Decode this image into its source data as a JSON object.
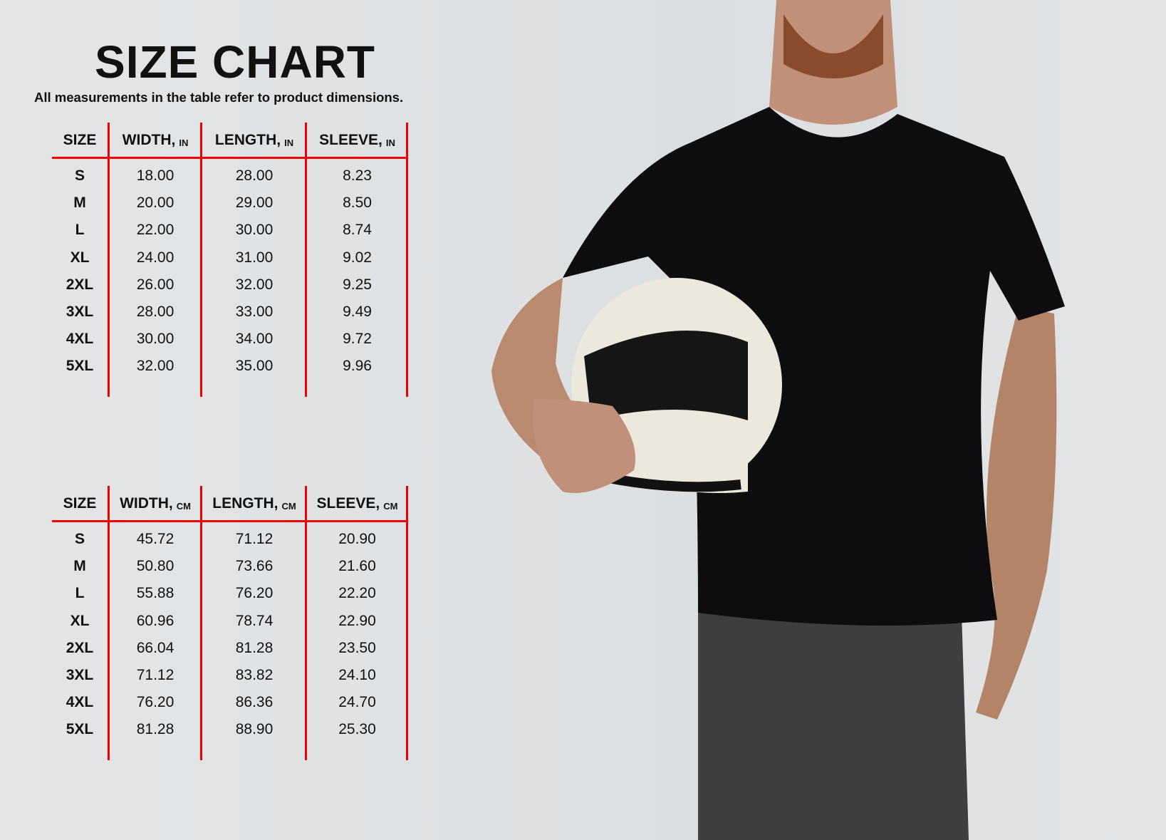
{
  "title": "SIZE CHART",
  "subtitle": "All measurements in the table refer to product dimensions.",
  "accent_color": "#f00000",
  "tables": [
    {
      "unit": "IN",
      "headers": [
        "SIZE",
        "WIDTH,",
        "LENGTH,",
        "SLEEVE,"
      ],
      "rows": [
        [
          "S",
          "18.00",
          "28.00",
          "8.23"
        ],
        [
          "M",
          "20.00",
          "29.00",
          "8.50"
        ],
        [
          "L",
          "22.00",
          "30.00",
          "8.74"
        ],
        [
          "XL",
          "24.00",
          "31.00",
          "9.02"
        ],
        [
          "2XL",
          "26.00",
          "32.00",
          "9.25"
        ],
        [
          "3XL",
          "28.00",
          "33.00",
          "9.49"
        ],
        [
          "4XL",
          "30.00",
          "34.00",
          "9.72"
        ],
        [
          "5XL",
          "32.00",
          "35.00",
          "9.96"
        ]
      ]
    },
    {
      "unit": "CM",
      "headers": [
        "SIZE",
        "WIDTH,",
        "LENGTH,",
        "SLEEVE,"
      ],
      "rows": [
        [
          "S",
          "45.72",
          "71.12",
          "20.90"
        ],
        [
          "M",
          "50.80",
          "73.66",
          "21.60"
        ],
        [
          "L",
          "55.88",
          "76.20",
          "22.20"
        ],
        [
          "XL",
          "60.96",
          "78.74",
          "22.90"
        ],
        [
          "2XL",
          "66.04",
          "81.28",
          "23.50"
        ],
        [
          "3XL",
          "71.12",
          "83.82",
          "24.10"
        ],
        [
          "4XL",
          "76.20",
          "86.36",
          "24.70"
        ],
        [
          "5XL",
          "81.28",
          "88.90",
          "25.30"
        ]
      ]
    }
  ]
}
